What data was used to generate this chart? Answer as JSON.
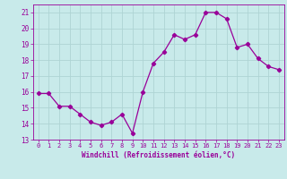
{
  "x": [
    0,
    1,
    2,
    3,
    4,
    5,
    6,
    7,
    8,
    9,
    10,
    11,
    12,
    13,
    14,
    15,
    16,
    17,
    18,
    19,
    20,
    21,
    22,
    23
  ],
  "y": [
    15.9,
    15.9,
    15.1,
    15.1,
    14.6,
    14.1,
    13.9,
    14.1,
    14.6,
    13.4,
    16.0,
    17.8,
    18.5,
    19.6,
    19.3,
    19.6,
    21.0,
    21.0,
    20.6,
    18.8,
    19.0,
    18.1,
    17.6,
    17.4
  ],
  "line_color": "#990099",
  "marker": "D",
  "marker_size": 2.2,
  "bg_color": "#c8eaea",
  "grid_color": "#aed4d4",
  "xlabel": "Windchill (Refroidissement éolien,°C)",
  "xlabel_color": "#990099",
  "tick_color": "#990099",
  "label_color": "#990099",
  "ylim": [
    13,
    21.5
  ],
  "yticks": [
    13,
    14,
    15,
    16,
    17,
    18,
    19,
    20,
    21
  ],
  "xlim": [
    -0.5,
    23.5
  ],
  "xticks": [
    0,
    1,
    2,
    3,
    4,
    5,
    6,
    7,
    8,
    9,
    10,
    11,
    12,
    13,
    14,
    15,
    16,
    17,
    18,
    19,
    20,
    21,
    22,
    23
  ]
}
